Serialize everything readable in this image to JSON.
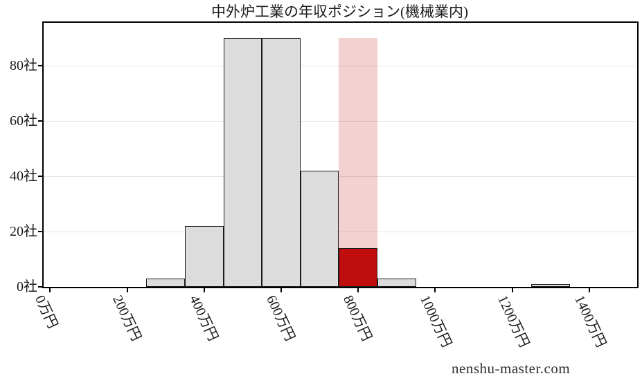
{
  "page": {
    "watermark": "nenshu-master.com"
  },
  "chart_data": {
    "type": "bar",
    "subtype": "histogram",
    "title": "中外炉工業の年収ポジション(機械業内)",
    "x_unit": "万円",
    "y_unit": "社",
    "xlim": [
      -17,
      1521
    ],
    "ylim": [
      0,
      95.5
    ],
    "grid": "horizontal",
    "legend": "none",
    "x_ticks": [
      {
        "value": 0,
        "label": "0万円"
      },
      {
        "value": 200,
        "label": "200万円"
      },
      {
        "value": 400,
        "label": "400万円"
      },
      {
        "value": 600,
        "label": "600万円"
      },
      {
        "value": 800,
        "label": "800万円"
      },
      {
        "value": 1000,
        "label": "1000万円"
      },
      {
        "value": 1200,
        "label": "1200万円"
      },
      {
        "value": 1400,
        "label": "1400万円"
      }
    ],
    "y_ticks": [
      {
        "value": 0,
        "label": "0社"
      },
      {
        "value": 20,
        "label": "20社"
      },
      {
        "value": 40,
        "label": "40社"
      },
      {
        "value": 60,
        "label": "60社"
      },
      {
        "value": 80,
        "label": "80社"
      }
    ],
    "bins": [
      {
        "from": 250,
        "to": 350,
        "count": 3,
        "role": "normal"
      },
      {
        "from": 350,
        "to": 450,
        "count": 22,
        "role": "normal"
      },
      {
        "from": 450,
        "to": 550,
        "count": 90,
        "role": "normal"
      },
      {
        "from": 550,
        "to": 650,
        "count": 90,
        "role": "normal"
      },
      {
        "from": 650,
        "to": 750,
        "count": 42,
        "role": "normal"
      },
      {
        "from": 750,
        "to": 850,
        "count": 14,
        "role": "highlight"
      },
      {
        "from": 850,
        "to": 950,
        "count": 3,
        "role": "normal"
      },
      {
        "from": 1250,
        "to": 1350,
        "count": 1,
        "role": "normal"
      }
    ],
    "highlight_band": {
      "from": 750,
      "to": 850,
      "top": 90
    },
    "colors": {
      "bar_fill": "#dcdcdc",
      "bar_edge": "#1a1a1a",
      "highlight_fill": "#c00d0d",
      "highlight_band_fill": "rgba(193,13,13,0.19)",
      "grid": "#e2e2e2",
      "axis": "#000000",
      "text": "#1a1a1a"
    }
  }
}
